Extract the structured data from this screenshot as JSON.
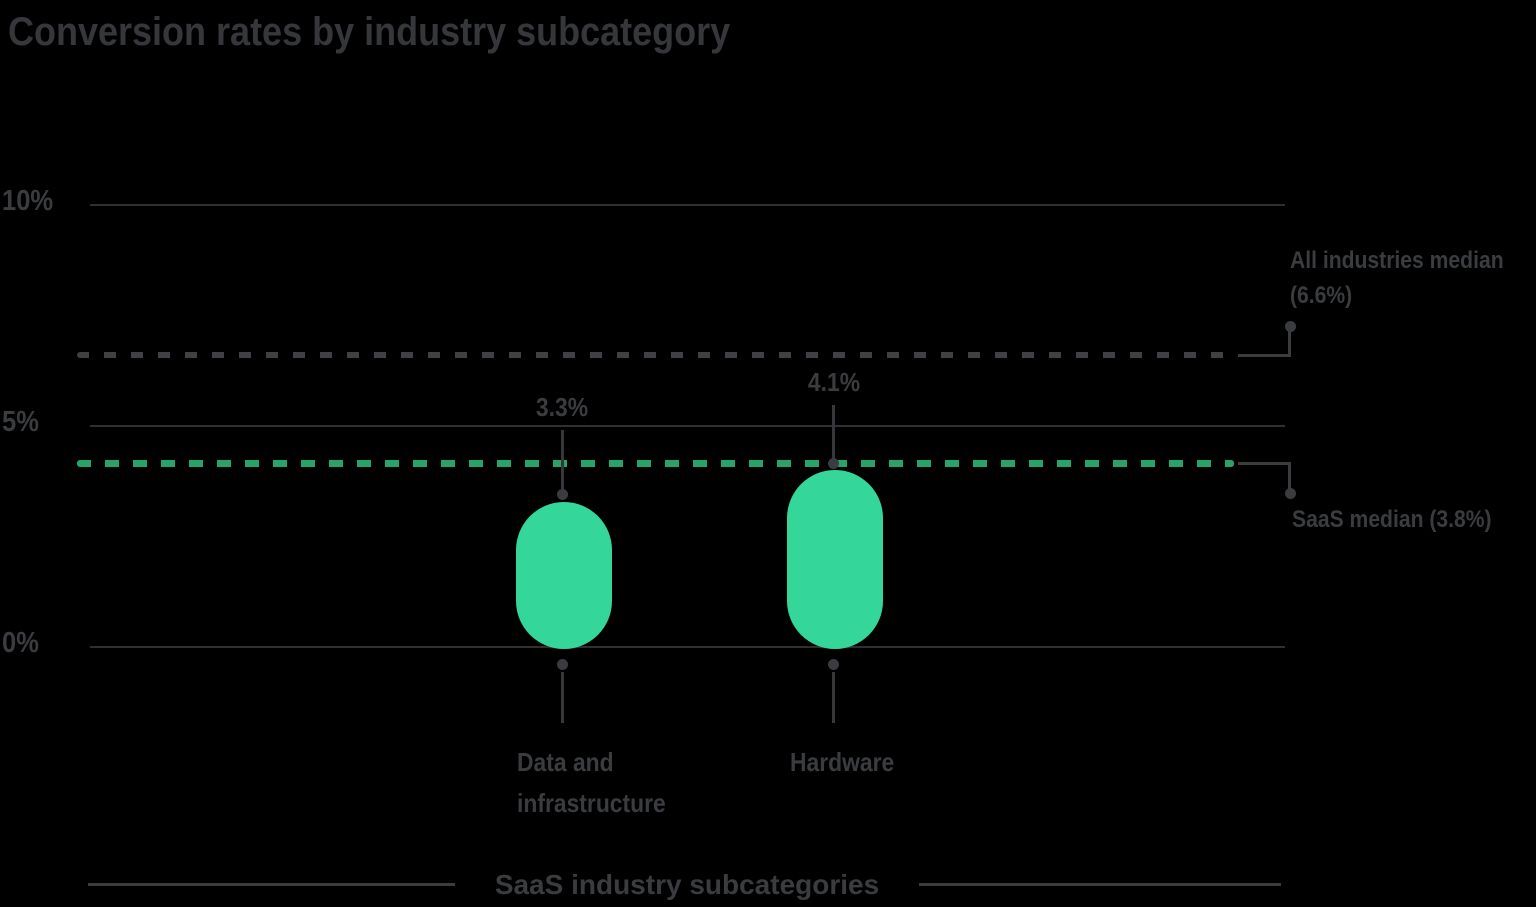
{
  "title": "Conversion rates by industry subcategory",
  "chart_data": {
    "type": "bar",
    "title": "Conversion rates by industry subcategory",
    "categories": [
      "Data and infrastructure",
      "Hardware"
    ],
    "values": [
      3.3,
      4.1
    ],
    "value_labels": [
      "3.3%",
      "4.1%"
    ],
    "unit": "%",
    "xlabel": "SaaS industry subcategories",
    "ylabel": "",
    "ylim": [
      0,
      10
    ],
    "ytick_labels": [
      "10%",
      "5%",
      "0%"
    ],
    "ytick_values": [
      10,
      5,
      0
    ],
    "grid": true,
    "legend_position": "none",
    "bar_color": "#35d699",
    "bar_shape": "capsule",
    "reference_lines": [
      {
        "name": "All industries median",
        "value": 6.6,
        "label_line1": "All industries median",
        "label_line2": "(6.6%)",
        "style": "dashed",
        "color": "#3f4145"
      },
      {
        "name": "SaaS median",
        "value": 3.8,
        "label": "SaaS median (3.8%)",
        "style": "dashed",
        "color": "#27a469"
      }
    ]
  },
  "category_labels": [
    {
      "line1": "Data and",
      "line2": "infrastructure"
    },
    {
      "line1": "Hardware",
      "line2": ""
    }
  ],
  "colors": {
    "background": "#000000",
    "bar": "#35d699",
    "saas_median_dash": "#27a469",
    "industry_median_dash": "#3f4145",
    "text": "#3a3c40",
    "gridline": "#2e3033"
  }
}
